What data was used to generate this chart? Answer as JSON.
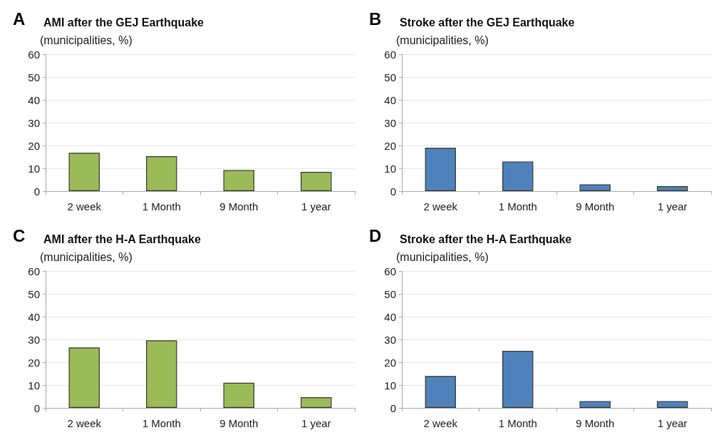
{
  "chart_data": [
    {
      "type": "bar",
      "title": "AMI after the GEJ Earthquake",
      "annotations": [
        "A"
      ],
      "ylabel": "(municipalities, %)",
      "categories": [
        "2 week",
        "1 Month",
        "9 Month",
        "1 year"
      ],
      "values": [
        16.8,
        15.3,
        9.2,
        8.4
      ],
      "color": "#9bbb59",
      "ylim": [
        0,
        60
      ],
      "yticks": [
        0,
        10,
        20,
        30,
        40,
        50,
        60
      ],
      "grid": "y"
    },
    {
      "type": "bar",
      "title": "Stroke after the GEJ Earthquake",
      "annotations": [
        "B"
      ],
      "ylabel": "(municipalities, %)",
      "categories": [
        "2 week",
        "1 Month",
        "9 Month",
        "1 year"
      ],
      "values": [
        19,
        13,
        3,
        2.2
      ],
      "color": "#4f81bd",
      "ylim": [
        0,
        60
      ],
      "yticks": [
        0,
        10,
        20,
        30,
        40,
        50,
        60
      ],
      "grid": "y"
    },
    {
      "type": "bar",
      "title": "AMI after the H-A Earthquake",
      "annotations": [
        "C"
      ],
      "ylabel": "(municipalities, %)",
      "categories": [
        "2 week",
        "1 Month",
        "9 Month",
        "1 year"
      ],
      "values": [
        26.5,
        29.6,
        11,
        4.7
      ],
      "color": "#9bbb59",
      "ylim": [
        0,
        60
      ],
      "yticks": [
        0,
        10,
        20,
        30,
        40,
        50,
        60
      ],
      "grid": "y"
    },
    {
      "type": "bar",
      "title": "Stroke after the H-A Earthquake",
      "annotations": [
        "D"
      ],
      "ylabel": "(municipalities, %)",
      "categories": [
        "2 week",
        "1 Month",
        "9 Month",
        "1 year"
      ],
      "values": [
        14,
        25,
        3,
        3
      ],
      "color": "#4f81bd",
      "ylim": [
        0,
        60
      ],
      "yticks": [
        0,
        10,
        20,
        30,
        40,
        50,
        60
      ],
      "grid": "y"
    }
  ]
}
